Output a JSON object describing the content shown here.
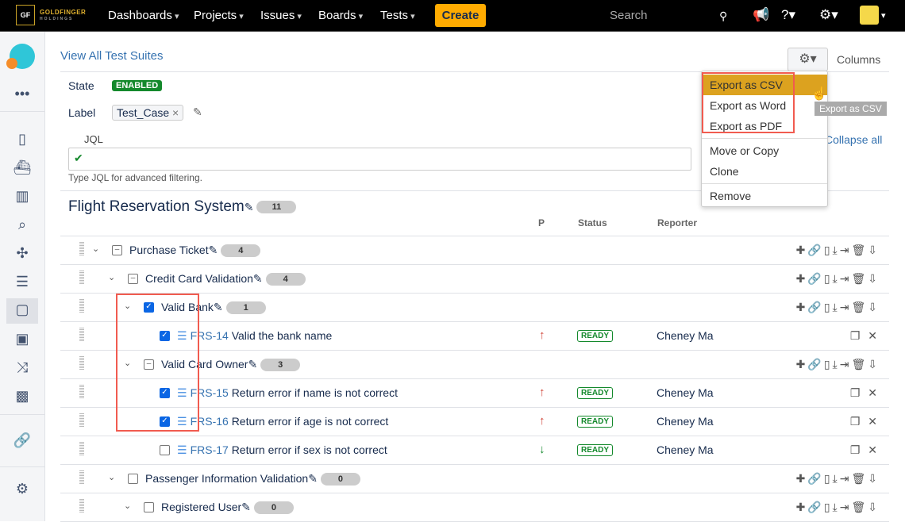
{
  "header": {
    "logo_text": "GOLDFINGER",
    "logo_sub": "HOLDINGS",
    "logo_mark": "GF",
    "nav": [
      "Dashboards",
      "Projects",
      "Issues",
      "Boards",
      "Tests"
    ],
    "create_label": "Create",
    "search_placeholder": "Search"
  },
  "page": {
    "view_all_link": "View All Test Suites",
    "state_label": "State",
    "state_value": "ENABLED",
    "label_label": "Label",
    "label_tag": "Test_Case",
    "jql_label": "JQL",
    "jql_hint": "Type JQL for advanced filtering.",
    "collapse_all": "Collapse all",
    "columns_label": "Columns",
    "suite_title": "Flight Reservation System",
    "suite_count": "11",
    "col_p": "P",
    "col_status": "Status",
    "col_reporter": "Reporter"
  },
  "menu": {
    "items": [
      "Export as CSV",
      "Export as Word",
      "Export as PDF",
      "Move or Copy",
      "Clone",
      "Remove"
    ],
    "tooltip": "Export as CSV",
    "highlight_color": "#dca21f"
  },
  "rows": [
    {
      "level": 0,
      "kind": "folder",
      "check": "minus",
      "text": "Purchase Ticket",
      "count": "4"
    },
    {
      "level": 1,
      "kind": "folder",
      "check": "minus",
      "text": "Credit Card Validation",
      "count": "4"
    },
    {
      "level": 2,
      "kind": "folder",
      "check": "checked",
      "text": "Valid Bank",
      "count": "1"
    },
    {
      "level": 3,
      "kind": "issue",
      "check": "checked",
      "key": "FRS-14",
      "text": "Valid the bank name",
      "priority": "up",
      "status": "READY",
      "reporter": "Cheney Ma"
    },
    {
      "level": 2,
      "kind": "folder",
      "check": "minus",
      "text": "Valid Card Owner",
      "count": "3"
    },
    {
      "level": 3,
      "kind": "issue",
      "check": "checked",
      "key": "FRS-15",
      "text": "Return error if name is not correct",
      "priority": "up",
      "status": "READY",
      "reporter": "Cheney Ma"
    },
    {
      "level": 3,
      "kind": "issue",
      "check": "checked",
      "key": "FRS-16",
      "text": "Return error if age is not correct",
      "priority": "up",
      "status": "READY",
      "reporter": "Cheney Ma"
    },
    {
      "level": 3,
      "kind": "issue",
      "check": "empty",
      "key": "FRS-17",
      "text": "Return error if sex is not correct",
      "priority": "down",
      "status": "READY",
      "reporter": "Cheney Ma"
    },
    {
      "level": 1,
      "kind": "folder",
      "check": "empty",
      "text": "Passenger Information Validation",
      "count": "0"
    },
    {
      "level": 2,
      "kind": "folder",
      "check": "empty",
      "text": "Registered User",
      "count": "0"
    }
  ]
}
